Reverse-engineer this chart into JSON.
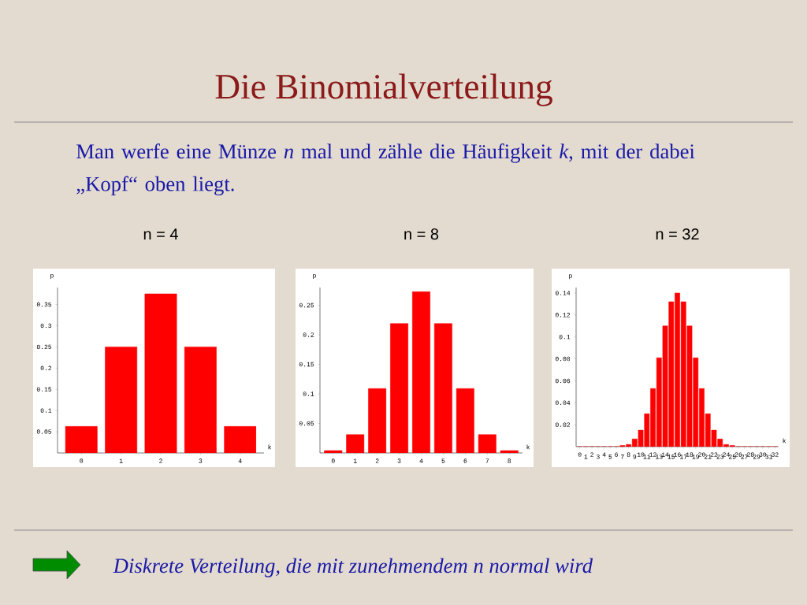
{
  "chart_data": [
    {
      "type": "bar",
      "title": "n = 4",
      "xlabel": "k",
      "ylabel": "p",
      "color": "#ff0000",
      "categories": [
        "0",
        "1",
        "2",
        "3",
        "4"
      ],
      "values": [
        0.0625,
        0.25,
        0.375,
        0.25,
        0.0625
      ],
      "ylim": [
        0,
        0.39
      ],
      "yticks": [
        0.05,
        0.1,
        0.15,
        0.2,
        0.25,
        0.3,
        0.35
      ],
      "annotations": [
        "Die Binomialverteilung",
        "Man werfe eine Münze *n* mal und zähle die Häufigkeit *k*, mit der dabei „Kopf“ oben liegt.",
        "Diskrete Verteilung, die mit zunehmendem n normal wird"
      ]
    },
    {
      "type": "bar",
      "title": "n = 8",
      "xlabel": "k",
      "ylabel": "p",
      "color": "#ff0000",
      "categories": [
        "0",
        "1",
        "2",
        "3",
        "4",
        "5",
        "6",
        "7",
        "8"
      ],
      "values": [
        0.004,
        0.031,
        0.109,
        0.219,
        0.273,
        0.219,
        0.109,
        0.031,
        0.004
      ],
      "ylim": [
        0,
        0.28
      ],
      "yticks": [
        0.05,
        0.1,
        0.15,
        0.2,
        0.25
      ]
    },
    {
      "type": "bar",
      "title": "n = 32",
      "xlabel": "k",
      "ylabel": "p",
      "color": "#ff0000",
      "categories": [
        "0",
        "1",
        "2",
        "3",
        "4",
        "5",
        "6",
        "7",
        "8",
        "9",
        "10",
        "11",
        "12",
        "13",
        "14",
        "15",
        "16",
        "17",
        "18",
        "19",
        "20",
        "21",
        "22",
        "23",
        "24",
        "25",
        "26",
        "27",
        "28",
        "29",
        "30",
        "31",
        "32"
      ],
      "values": [
        0,
        0,
        0,
        0,
        0,
        0,
        0,
        0.001,
        0.002,
        0.007,
        0.015,
        0.03,
        0.053,
        0.081,
        0.11,
        0.132,
        0.14,
        0.132,
        0.11,
        0.081,
        0.053,
        0.03,
        0.015,
        0.007,
        0.002,
        0.001,
        0,
        0,
        0,
        0,
        0,
        0,
        0
      ],
      "ylim": [
        0,
        0.145
      ],
      "yticks": [
        0.02,
        0.04,
        0.06,
        0.08,
        0.1,
        0.12,
        0.14
      ]
    }
  ]
}
